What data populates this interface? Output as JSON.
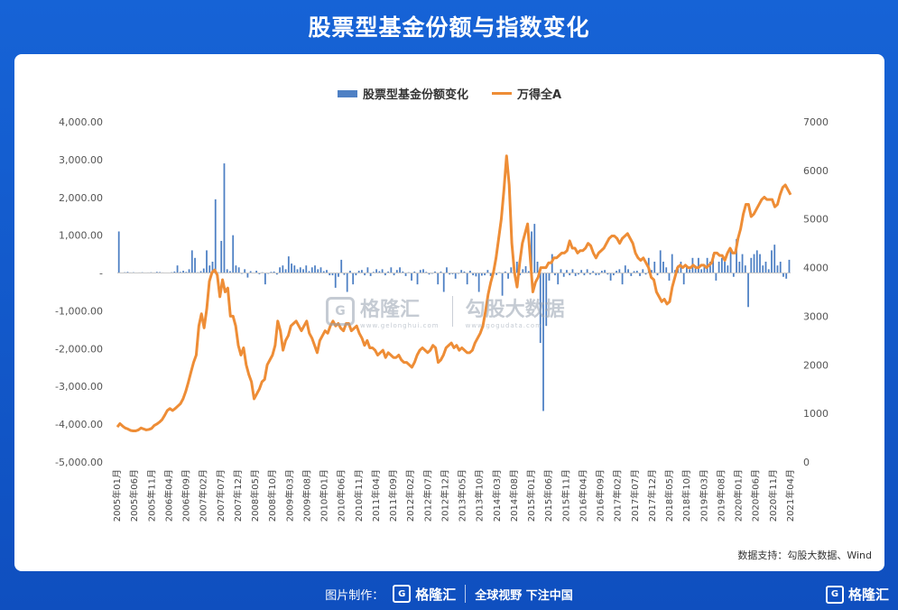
{
  "title": "股票型基金份额与指数变化",
  "legend": {
    "bar_label": "股票型基金份额变化",
    "line_label": "万得全A"
  },
  "source": "数据支持：勾股大数据、Wind",
  "watermark": {
    "brand": "格隆汇",
    "brand_url": "www.gelonghui.com",
    "data_brand": "勾股大数据",
    "data_url": "www.gogudata.com"
  },
  "footer": {
    "made_by": "图片制作：",
    "brand": "格隆汇",
    "slogan": "全球视野 下注中国"
  },
  "corner_brand": "格隆汇",
  "colors": {
    "bar": "#4e80c4",
    "line": "#ee8d36",
    "background": "#1663d6"
  },
  "chart_data": {
    "type": "bar+line",
    "left_axis": {
      "ticks": [
        "4,000.00",
        "3,000.00",
        "2,000.00",
        "1,000.00",
        "-",
        "-1,000.00",
        "-2,000.00",
        "-3,000.00",
        "-4,000.00",
        "-5,000.00"
      ],
      "ylim": [
        -5000,
        4000
      ]
    },
    "right_axis": {
      "ticks": [
        "7000",
        "6000",
        "5000",
        "4000",
        "3000",
        "2000",
        "1000",
        "0"
      ],
      "ylim": [
        0,
        7000
      ]
    },
    "x_labels": [
      "2005年01月",
      "2005年06月",
      "2005年11月",
      "2006年04月",
      "2006年09月",
      "2007年02月",
      "2007年07月",
      "2007年12月",
      "2008年05月",
      "2008年10月",
      "2009年03月",
      "2009年08月",
      "2010年01月",
      "2010年06月",
      "2010年11月",
      "2011年04月",
      "2011年09月",
      "2012年02月",
      "2012年07月",
      "2012年12月",
      "2013年05月",
      "2013年10月",
      "2014年03月",
      "2014年08月",
      "2015年01月",
      "2015年06月",
      "2015年11月",
      "2016年04月",
      "2016年09月",
      "2017年02月",
      "2017年07月",
      "2017年12月",
      "2018年05月",
      "2018年10月",
      "2019年03月",
      "2019年08月",
      "2020年01月",
      "2020年06月",
      "2020年11月",
      "2021年04月"
    ],
    "series": [
      {
        "name": "股票型基金份额变化",
        "kind": "bar",
        "values": [
          1100,
          10,
          20,
          30,
          15,
          20,
          10,
          15,
          20,
          10,
          15,
          20,
          10,
          30,
          25,
          15,
          10,
          5,
          20,
          40,
          200,
          30,
          60,
          30,
          100,
          600,
          400,
          20,
          50,
          120,
          600,
          200,
          300,
          1950,
          20,
          850,
          2900,
          100,
          50,
          1000,
          200,
          150,
          -20,
          100,
          -120,
          50,
          10,
          60,
          -30,
          20,
          -300,
          -20,
          30,
          40,
          -40,
          150,
          200,
          100,
          440,
          250,
          200,
          100,
          150,
          100,
          200,
          50,
          150,
          200,
          100,
          150,
          50,
          80,
          -60,
          -60,
          -390,
          -100,
          350,
          -50,
          -500,
          60,
          -300,
          -60,
          60,
          80,
          -60,
          150,
          -80,
          30,
          100,
          50,
          100,
          -60,
          40,
          150,
          -60,
          80,
          150,
          40,
          -80,
          20,
          -200,
          40,
          -300,
          80,
          100,
          30,
          -40,
          -20,
          40,
          -300,
          40,
          -500,
          150,
          -40,
          -30,
          -150,
          -20,
          80,
          40,
          -300,
          60,
          -60,
          -90,
          -500,
          -70,
          -60,
          80,
          -80,
          -30,
          -50,
          20,
          -600,
          40,
          -150,
          150,
          200,
          300,
          -60,
          100,
          180,
          50,
          1100,
          1300,
          300,
          -1850,
          -3650,
          -1400,
          -200,
          500,
          -60,
          -300,
          100,
          -100,
          80,
          -60,
          100,
          -80,
          -40,
          80,
          -60,
          100,
          -40,
          50,
          -60,
          -50,
          60,
          80,
          -40,
          -200,
          -60,
          60,
          100,
          -300,
          200,
          100,
          -80,
          50,
          60,
          -80,
          100,
          -40,
          400,
          80,
          300,
          -60,
          600,
          300,
          150,
          -200,
          500,
          80,
          200,
          300,
          -300,
          200,
          100,
          400,
          200,
          400,
          100,
          200,
          400,
          300,
          500,
          -200,
          300,
          400,
          300,
          200,
          600,
          -100,
          900,
          300,
          500,
          200,
          -900,
          400,
          500,
          600,
          500,
          200,
          300,
          100,
          600,
          750,
          200,
          300,
          -100,
          -150,
          350
        ]
      },
      {
        "name": "万得全A",
        "kind": "line",
        "values": [
          720,
          790,
          740,
          700,
          680,
          650,
          640,
          640,
          660,
          700,
          680,
          660,
          670,
          690,
          750,
          780,
          820,
          870,
          960,
          1060,
          1100,
          1060,
          1100,
          1150,
          1200,
          1300,
          1450,
          1640,
          1850,
          2050,
          2200,
          2800,
          3050,
          2760,
          3150,
          3720,
          3900,
          3950,
          3850,
          3400,
          3750,
          3500,
          3580,
          3000,
          3000,
          2800,
          2400,
          2200,
          2350,
          2000,
          1800,
          1650,
          1300,
          1400,
          1500,
          1650,
          1700,
          2000,
          2100,
          2200,
          2400,
          2900,
          2700,
          2300,
          2500,
          2600,
          2800,
          2850,
          2900,
          2800,
          2700,
          2800,
          2900,
          2650,
          2550,
          2400,
          2250,
          2500,
          2600,
          2700,
          2650,
          2800,
          2900,
          2800,
          2850,
          2750,
          2700,
          2850,
          2850,
          2700,
          2750,
          2800,
          2650,
          2550,
          2400,
          2500,
          2350,
          2350,
          2300,
          2200,
          2250,
          2300,
          2150,
          2250,
          2200,
          2150,
          2150,
          2200,
          2100,
          2050,
          2050,
          2000,
          1950,
          2050,
          2200,
          2300,
          2350,
          2300,
          2250,
          2300,
          2400,
          2350,
          2050,
          2100,
          2200,
          2350,
          2400,
          2450,
          2350,
          2400,
          2300,
          2350,
          2300,
          2250,
          2250,
          2300,
          2450,
          2550,
          2650,
          2800,
          3100,
          3450,
          3700,
          3900,
          4200,
          4600,
          5000,
          5600,
          6300,
          5700,
          4500,
          3900,
          3600,
          4100,
          4500,
          4700,
          4900,
          4200,
          3500,
          3700,
          3800,
          4000,
          4000,
          4000,
          4100,
          4100,
          4200,
          4200,
          4250,
          4300,
          4300,
          4350,
          4550,
          4400,
          4400,
          4300,
          4350,
          4350,
          4400,
          4500,
          4450,
          4300,
          4200,
          4300,
          4350,
          4400,
          4500,
          4600,
          4650,
          4650,
          4600,
          4500,
          4600,
          4650,
          4700,
          4600,
          4500,
          4300,
          4200,
          4150,
          4200,
          4100,
          4000,
          3800,
          3750,
          3500,
          3400,
          3300,
          3350,
          3250,
          3300,
          3600,
          3800,
          4000,
          4050,
          4000,
          4050,
          4000,
          4000,
          4050,
          4000,
          4000,
          4050,
          4050,
          4000,
          4050,
          4100,
          4300,
          4300,
          4250,
          4250,
          4150,
          4300,
          4400,
          4300,
          4300,
          4600,
          4800,
          5100,
          5300,
          5300,
          5050,
          5100,
          5200,
          5300,
          5400,
          5450,
          5400,
          5400,
          5400,
          5250,
          5300,
          5500,
          5650,
          5700,
          5600,
          5500
        ]
      }
    ]
  }
}
